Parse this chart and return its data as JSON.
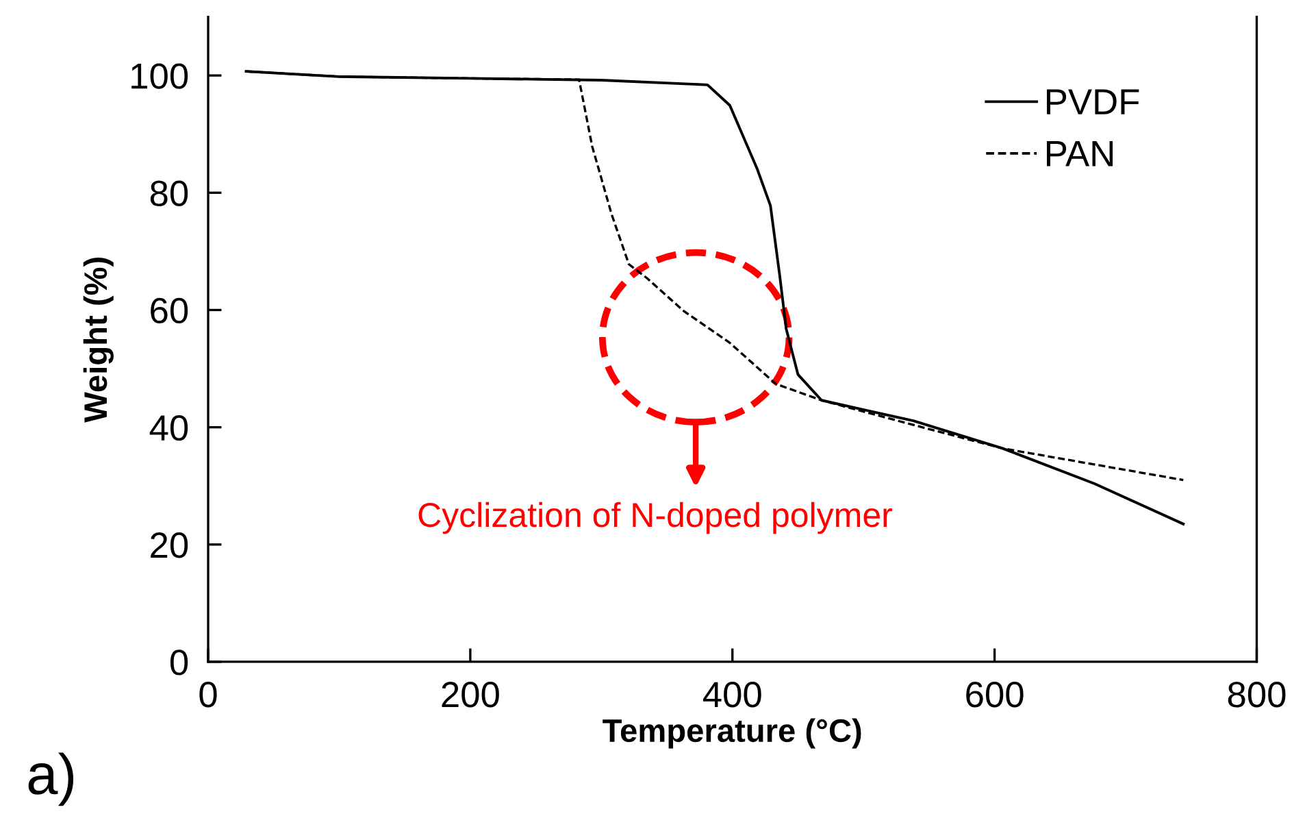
{
  "chart_data": {
    "type": "line",
    "xlabel": "Temperature (°C)",
    "ylabel": "Weight (%)",
    "xlim": [
      0,
      800
    ],
    "ylim": [
      0,
      110
    ],
    "xticks": [
      0,
      200,
      400,
      600,
      800
    ],
    "yticks": [
      0,
      20,
      40,
      60,
      80,
      100
    ],
    "grid": false,
    "legend": "top right",
    "marker": "none",
    "annotations": [
      "Cyclization of N-doped polymer",
      "a)"
    ],
    "series": [
      {
        "name": "PVDF",
        "color": "#000000",
        "line_style": "solid",
        "x": [
          29,
          100,
          200,
          300,
          381,
          398,
          419,
          429,
          436,
          441,
          450,
          468,
          538,
          606,
          676,
          744
        ],
        "values": [
          100.7,
          99.8,
          99.5,
          99.2,
          98.4,
          94.9,
          84,
          77.8,
          66,
          56.8,
          49,
          44.6,
          41.1,
          36.4,
          30.4,
          23.5
        ]
      },
      {
        "name": "PAN",
        "color": "#000000",
        "line_style": "dashed",
        "x": [
          29,
          100,
          200,
          283,
          293,
          308,
          321,
          335,
          363,
          398,
          433,
          468,
          538,
          606,
          744
        ],
        "values": [
          100.7,
          99.8,
          99.5,
          99.3,
          87.9,
          76.2,
          67.8,
          65.4,
          59.8,
          54.4,
          47.4,
          44.6,
          40.4,
          36.4,
          31
        ]
      }
    ]
  }
}
